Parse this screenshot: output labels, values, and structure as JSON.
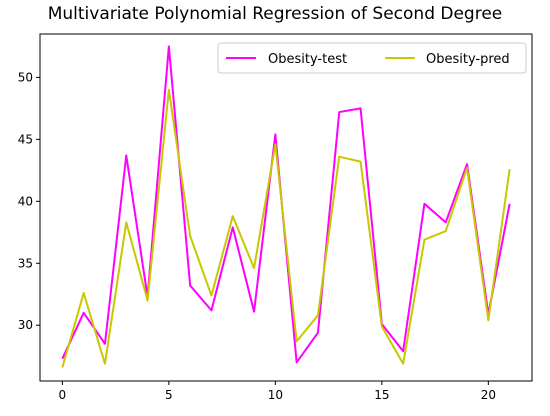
{
  "chart_data": {
    "type": "line",
    "title": "Multivariate Polynomial Regression of Second Degree",
    "xlabel": "",
    "ylabel": "",
    "x": [
      0,
      1,
      2,
      3,
      4,
      5,
      6,
      7,
      8,
      9,
      10,
      11,
      12,
      13,
      14,
      15,
      16,
      17,
      18,
      19,
      20,
      21
    ],
    "xlim": [
      -1.05,
      22.05
    ],
    "ylim": [
      25.5,
      53.5
    ],
    "xticks": [
      0,
      5,
      10,
      15,
      20
    ],
    "yticks": [
      30,
      35,
      40,
      45,
      50
    ],
    "grid": false,
    "legend_position": "top-right",
    "series": [
      {
        "name": "Obesity-test",
        "color": "#ff00ff",
        "values": [
          27.3,
          31.0,
          28.5,
          43.7,
          32.3,
          52.5,
          33.2,
          31.2,
          37.9,
          31.1,
          45.4,
          27.0,
          29.4,
          47.2,
          47.5,
          30.1,
          27.9,
          39.8,
          38.3,
          43.0,
          30.9,
          39.8
        ]
      },
      {
        "name": "Obesity-pred",
        "color": "#c8c800",
        "values": [
          26.6,
          32.6,
          26.9,
          38.3,
          32.0,
          49.0,
          37.2,
          32.4,
          38.8,
          34.6,
          44.6,
          28.7,
          30.8,
          43.6,
          43.2,
          29.9,
          26.9,
          36.9,
          37.6,
          42.7,
          30.4,
          42.6
        ]
      }
    ]
  }
}
